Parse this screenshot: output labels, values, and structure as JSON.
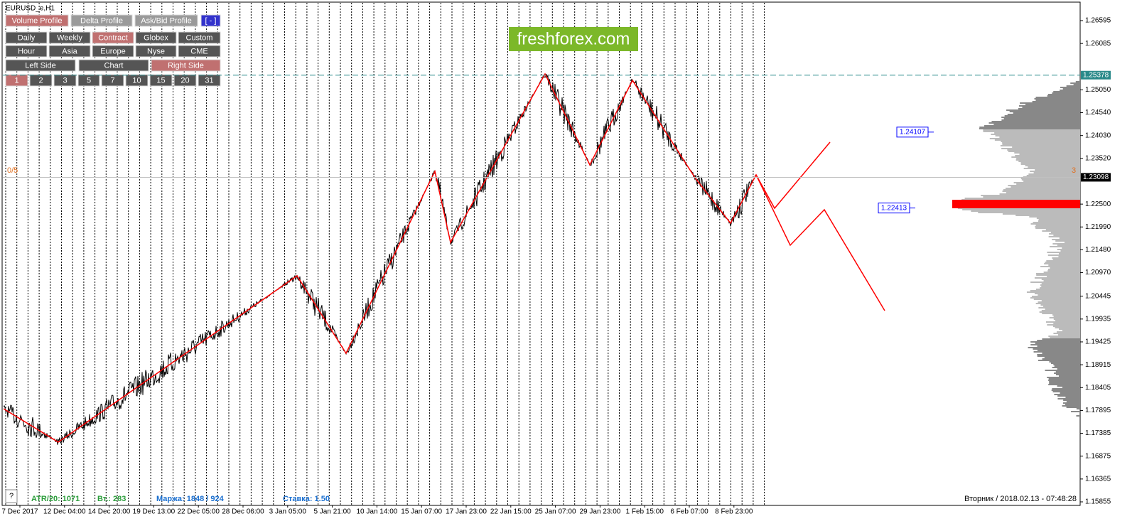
{
  "window_title": "EURUSD_e,H1",
  "watermark": "freshforex.com",
  "buttons": {
    "row1": [
      {
        "label": "Volume Profile",
        "active": true
      },
      {
        "label": "Delta Profile",
        "active": false
      },
      {
        "label": "Ask/Bid Profile",
        "active": false
      },
      {
        "label": "[ - ]",
        "active": false
      }
    ],
    "row2": [
      {
        "label": "Daily",
        "active": false
      },
      {
        "label": "Weekly",
        "active": false
      },
      {
        "label": "Contract",
        "active": true
      },
      {
        "label": "Globex",
        "active": false
      },
      {
        "label": "Custom",
        "active": false
      }
    ],
    "row3": [
      {
        "label": "Hour",
        "active": false
      },
      {
        "label": "Asia",
        "active": false
      },
      {
        "label": "Europe",
        "active": false
      },
      {
        "label": "Nyse",
        "active": false
      },
      {
        "label": "CME",
        "active": false
      }
    ],
    "row4": [
      {
        "label": "Left Side",
        "active": false
      },
      {
        "label": "Chart",
        "active": false
      },
      {
        "label": "Right Side",
        "active": true
      }
    ],
    "row5": [
      {
        "label": "1",
        "active": true
      },
      {
        "label": "2",
        "active": false
      },
      {
        "label": "3",
        "active": false
      },
      {
        "label": "5",
        "active": false
      },
      {
        "label": "7",
        "active": false
      },
      {
        "label": "10",
        "active": false
      },
      {
        "label": "15",
        "active": false
      },
      {
        "label": "20",
        "active": false
      },
      {
        "label": "31",
        "active": false
      }
    ]
  },
  "price_axis": [
    "1.26595",
    "1.26085",
    "1.25050",
    "1.24540",
    "1.24030",
    "1.23520",
    "1.22500",
    "1.21990",
    "1.21480",
    "1.20970",
    "1.20445",
    "1.19935",
    "1.19425",
    "1.18915",
    "1.18405",
    "1.17895",
    "1.17385",
    "1.16875",
    "1.16365",
    "1.15855"
  ],
  "line_price": "1.25378",
  "current_price": "1.23098",
  "levels": [
    "1.24107",
    "1.22413"
  ],
  "time_axis": [
    "7 Dec 2017",
    "12 Dec 04:00",
    "14 Dec 20:00",
    "19 Dec 13:00",
    "22 Dec 05:00",
    "28 Dec 06:00",
    "3 Jan 05:00",
    "5 Jan 21:00",
    "10 Jan 14:00",
    "15 Jan 07:00",
    "17 Jan 23:00",
    "22 Jan 15:00",
    "25 Jan 07:00",
    "29 Jan 23:00",
    "1 Feb 15:00",
    "6 Feb 07:00",
    "8 Feb 23:00"
  ],
  "markers": {
    "left": "0/5",
    "right": "3"
  },
  "status": {
    "atr": "ATR/20: 1071",
    "vt": "Вт.: 283",
    "margin": "Маржа: 1848 / 924",
    "rate": "Ставка: 1.50",
    "datetime": "Вторник / 2018.02.13 - 07:48:28"
  },
  "help": "?"
}
